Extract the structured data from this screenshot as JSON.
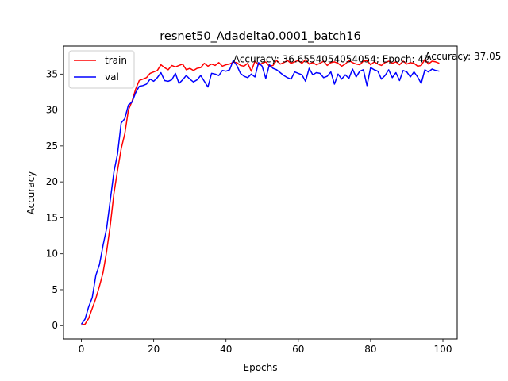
{
  "chart_data": {
    "type": "line",
    "title": "resnet50_Adadelta0.0001_batch16",
    "xlabel": "Epochs",
    "ylabel": "Accuracy",
    "xlim": [
      -4.95,
      103.95
    ],
    "ylim": [
      -1.85,
      38.9
    ],
    "xticks": [
      0,
      20,
      40,
      60,
      80,
      100
    ],
    "yticks": [
      0,
      5,
      10,
      15,
      20,
      25,
      30,
      35
    ],
    "grid": false,
    "legend_position": "upper left",
    "x": [
      0,
      1,
      2,
      3,
      4,
      5,
      6,
      7,
      8,
      9,
      10,
      11,
      12,
      13,
      14,
      15,
      16,
      17,
      18,
      19,
      20,
      21,
      22,
      23,
      24,
      25,
      26,
      27,
      28,
      29,
      30,
      31,
      32,
      33,
      34,
      35,
      36,
      37,
      38,
      39,
      40,
      41,
      42,
      43,
      44,
      45,
      46,
      47,
      48,
      49,
      50,
      51,
      52,
      53,
      54,
      55,
      56,
      57,
      58,
      59,
      60,
      61,
      62,
      63,
      64,
      65,
      66,
      67,
      68,
      69,
      70,
      71,
      72,
      73,
      74,
      75,
      76,
      77,
      78,
      79,
      80,
      81,
      82,
      83,
      84,
      85,
      86,
      87,
      88,
      89,
      90,
      91,
      92,
      93,
      94,
      95,
      96,
      97,
      98,
      99
    ],
    "series": [
      {
        "name": "train",
        "color": "#ff0000",
        "values": [
          0.1,
          0.2,
          1.0,
          2.4,
          3.8,
          5.5,
          7.4,
          10.4,
          14.0,
          18.4,
          21.6,
          24.6,
          26.7,
          30.0,
          31.2,
          32.9,
          34.1,
          34.3,
          34.5,
          35.1,
          35.3,
          35.5,
          36.3,
          35.9,
          35.6,
          36.2,
          36.0,
          36.2,
          36.4,
          35.6,
          35.8,
          35.5,
          35.8,
          35.9,
          36.5,
          36.1,
          36.4,
          36.2,
          36.6,
          36.1,
          36.3,
          36.4,
          36.66,
          36.6,
          36.2,
          36.1,
          36.5,
          35.4,
          36.8,
          36.3,
          36.5,
          36.7,
          36.1,
          36.2,
          36.9,
          36.4,
          36.6,
          36.9,
          36.5,
          36.7,
          36.9,
          36.5,
          37.0,
          36.4,
          36.6,
          36.3,
          36.5,
          36.8,
          36.2,
          36.6,
          36.7,
          36.5,
          36.1,
          36.4,
          36.9,
          36.6,
          36.4,
          36.3,
          36.8,
          36.9,
          36.3,
          36.7,
          36.4,
          36.2,
          36.6,
          36.8,
          36.5,
          36.7,
          36.3,
          36.8,
          36.4,
          36.6,
          36.5,
          36.1,
          36.2,
          37.05,
          36.4,
          36.8,
          36.7,
          36.5
        ]
      },
      {
        "name": "val",
        "color": "#0000ff",
        "values": [
          0.2,
          0.9,
          2.6,
          3.9,
          7.0,
          8.5,
          11.2,
          13.6,
          17.5,
          21.4,
          23.9,
          28.2,
          28.8,
          30.7,
          31.1,
          32.4,
          33.3,
          33.4,
          33.6,
          34.3,
          34.0,
          34.5,
          35.2,
          34.1,
          34.0,
          34.2,
          35.1,
          33.7,
          34.2,
          34.8,
          34.3,
          33.9,
          34.2,
          34.8,
          34.0,
          33.2,
          35.1,
          35.0,
          34.8,
          35.5,
          35.4,
          35.6,
          36.9,
          36.2,
          35.1,
          34.7,
          34.5,
          35.0,
          34.6,
          36.6,
          36.1,
          34.4,
          36.3,
          35.8,
          35.6,
          35.2,
          34.8,
          34.5,
          34.3,
          35.3,
          35.1,
          34.9,
          34.0,
          35.8,
          34.9,
          35.2,
          35.1,
          34.5,
          34.7,
          35.3,
          33.6,
          35.0,
          34.3,
          34.9,
          34.4,
          35.7,
          34.6,
          35.4,
          35.6,
          33.4,
          35.9,
          35.6,
          35.4,
          34.3,
          34.8,
          35.6,
          34.5,
          35.2,
          34.1,
          35.5,
          35.3,
          34.6,
          35.3,
          34.6,
          33.7,
          35.6,
          35.3,
          35.7,
          35.5,
          35.4
        ]
      }
    ],
    "annotations": [
      {
        "text": "Accuracy: 36.6554054054054; Epoch: 42",
        "x": 42,
        "y": 36.6554054054054
      },
      {
        "text": "Accuracy: 37.05",
        "x": 95,
        "y": 37.05
      }
    ]
  }
}
